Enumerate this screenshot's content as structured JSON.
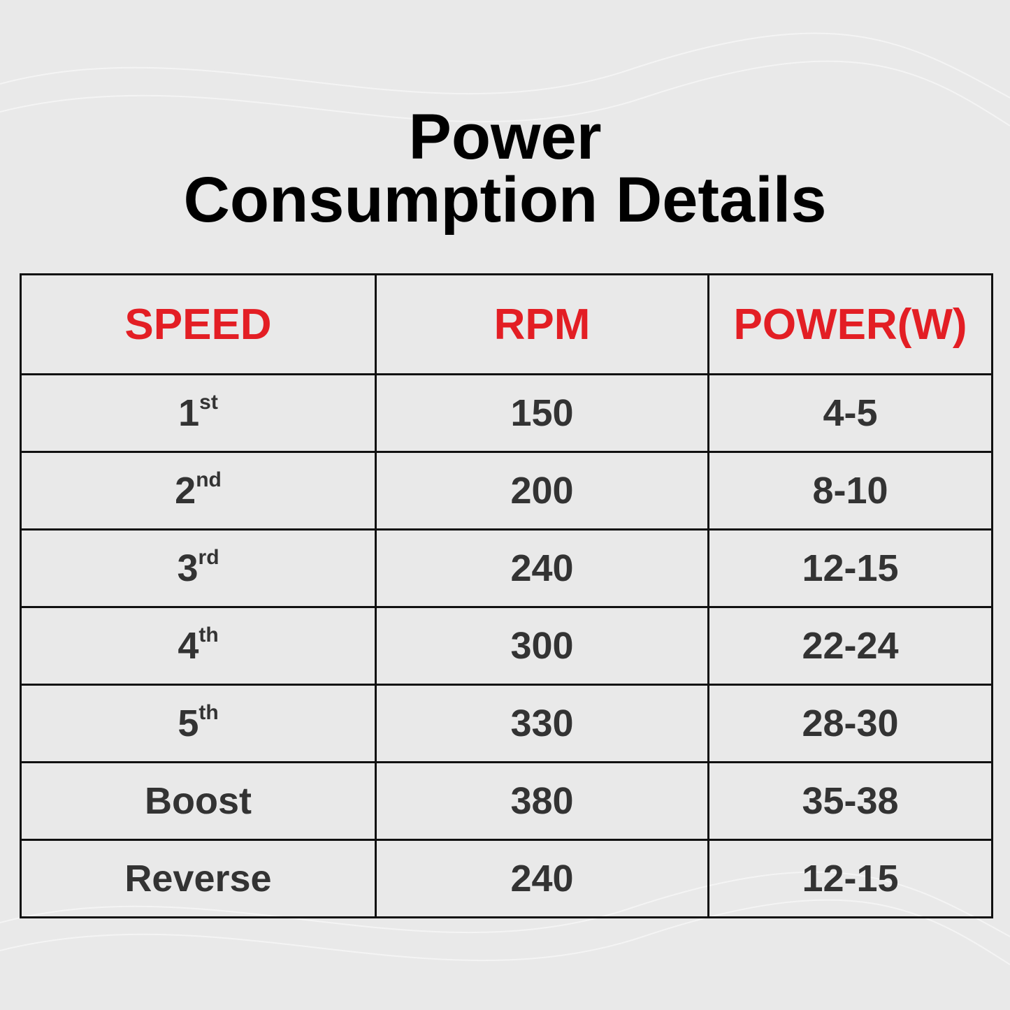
{
  "title_lines": [
    "Power",
    "Consumption Details"
  ],
  "table": {
    "headers": [
      "SPEED",
      "RPM",
      "POWER(W)"
    ],
    "rows": [
      [
        {
          "base": "1",
          "sup": "st"
        },
        150,
        "4-5"
      ],
      [
        {
          "base": "2",
          "sup": "nd"
        },
        200,
        "8-10"
      ],
      [
        {
          "base": "3",
          "sup": "rd"
        },
        240,
        "12-15"
      ],
      [
        {
          "base": "4",
          "sup": "th"
        },
        300,
        "22-24"
      ],
      [
        {
          "base": "5",
          "sup": "th"
        },
        330,
        "28-30"
      ],
      [
        "Boost",
        380,
        "35-38"
      ],
      [
        "Reverse",
        240,
        "12-15"
      ]
    ]
  }
}
